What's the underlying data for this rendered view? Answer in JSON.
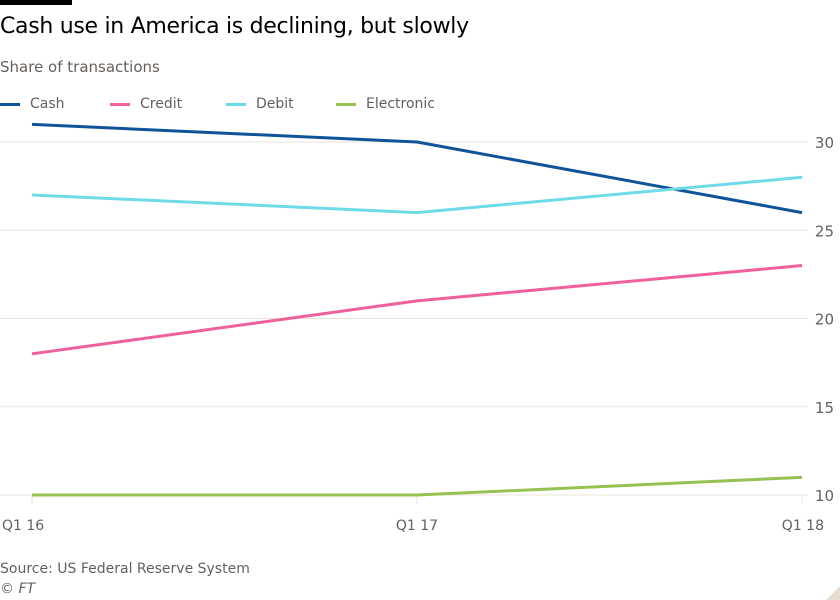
{
  "chart_data": {
    "type": "line",
    "title": "Cash use in America is declining, but slowly",
    "subtitle": "Share of transactions",
    "categories": [
      "Q1 16",
      "Q1 17",
      "Q1 18"
    ],
    "series": [
      {
        "name": "Cash",
        "color": "#0f5499",
        "values": [
          31,
          30,
          26
        ]
      },
      {
        "name": "Credit",
        "color": "#f0609b",
        "values": [
          18,
          21,
          23
        ]
      },
      {
        "name": "Debit",
        "color": "#6fdbe8",
        "values": [
          27,
          26,
          28
        ]
      },
      {
        "name": "Electronic",
        "color": "#96c252",
        "values": [
          10,
          10,
          11
        ]
      }
    ],
    "yticks": [
      "10",
      "15",
      "20",
      "25",
      "30"
    ],
    "ylim": [
      10,
      31
    ],
    "yaxis_position": "right",
    "grid": true,
    "legend": "top-left",
    "source": "Source: US Federal Reserve System",
    "credit": "© FT"
  }
}
